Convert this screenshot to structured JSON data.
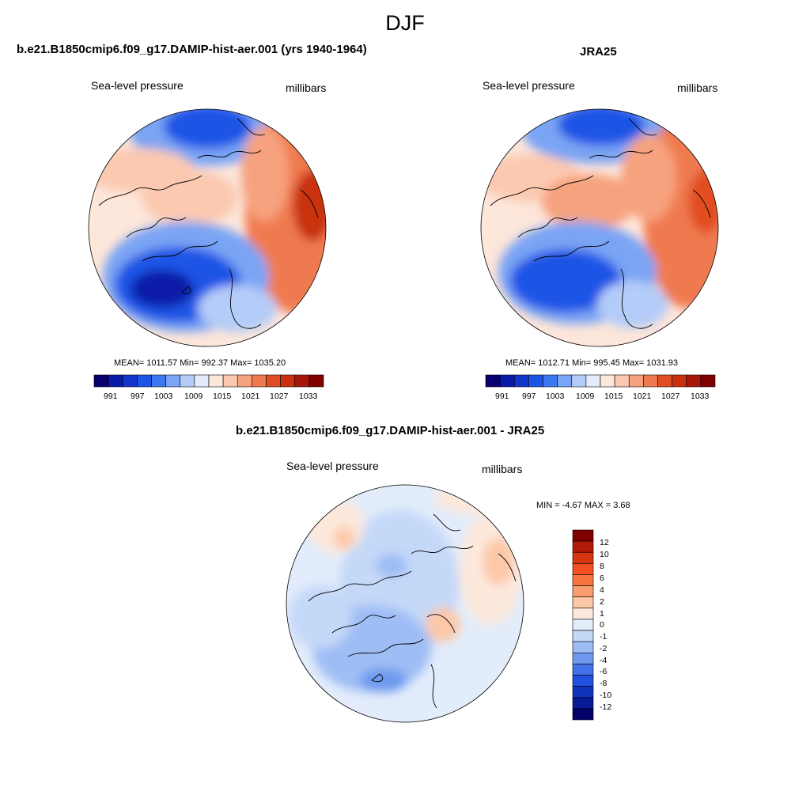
{
  "figure": {
    "title": "DJF"
  },
  "panels": [
    {
      "id": "model",
      "title": "b.e21.B1850cmip6.f09_g17.DAMIP-hist-aer.001 (yrs 1940-1964)",
      "left_label": "Sea-level pressure",
      "right_label": "millibars",
      "stats": "MEAN= 1011.57  Min= 992.37  Max= 1035.20",
      "colorbar_labels": [
        "991",
        "997",
        "1003",
        "1009",
        "1015",
        "1021",
        "1027",
        "1033"
      ]
    },
    {
      "id": "obs",
      "title": "JRA25",
      "left_label": "Sea-level pressure",
      "right_label": "millibars",
      "stats": "MEAN= 1012.71  Min= 995.45  Max= 1031.93",
      "colorbar_labels": [
        "991",
        "997",
        "1003",
        "1009",
        "1015",
        "1021",
        "1027",
        "1033"
      ]
    },
    {
      "id": "diff",
      "title": "b.e21.B1850cmip6.f09_g17.DAMIP-hist-aer.001 - JRA25",
      "left_label": "Sea-level pressure",
      "right_label": "millibars",
      "stats": "MIN =  -4.67 MAX =   3.68",
      "colorbar_labels": [
        "12",
        "10",
        "8",
        "6",
        "4",
        "2",
        "1",
        "0",
        "-1",
        "-2",
        "-4",
        "-6",
        "-8",
        "-10",
        "-12"
      ]
    }
  ],
  "colors": {
    "abs_scale": [
      "#08006e",
      "#0a1aa8",
      "#1236c8",
      "#1c55e6",
      "#3e78f0",
      "#7aa4f4",
      "#b4ccf8",
      "#e2ecfb",
      "#fde6da",
      "#fbc9b0",
      "#f6a27e",
      "#f07a50",
      "#e24e24",
      "#c8300e",
      "#a8180a",
      "#7e0000"
    ],
    "diff_scale": [
      "#7e0000",
      "#b41a08",
      "#d83410",
      "#f45020",
      "#f8763e",
      "#fa9e72",
      "#fcc8a8",
      "#fde9dc",
      "#e2ecfb",
      "#c4d8f8",
      "#9ebdf5",
      "#6e99ef",
      "#4472ea",
      "#2250e0",
      "#0f33bc",
      "#081a96",
      "#03006a"
    ],
    "coast": "#000000"
  }
}
